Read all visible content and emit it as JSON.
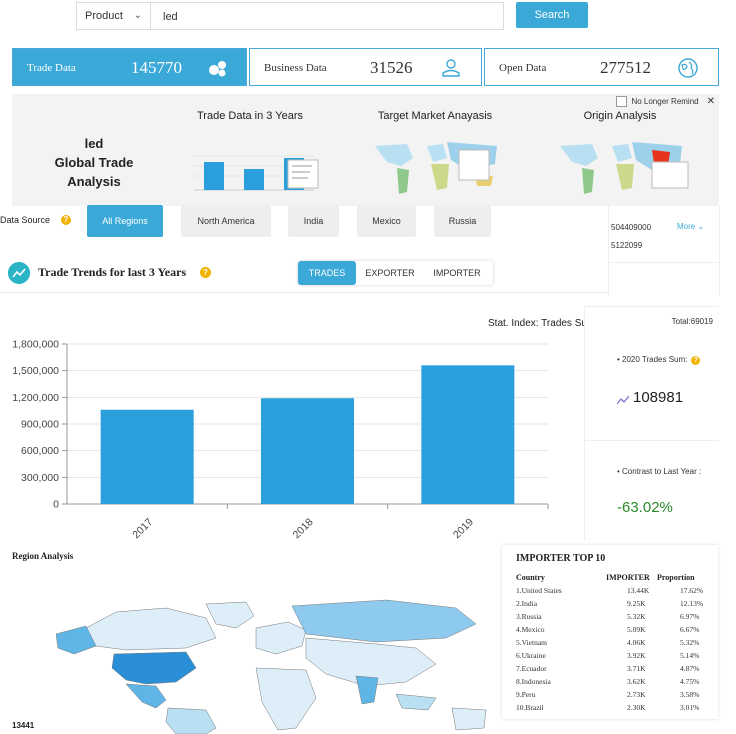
{
  "search": {
    "product_label": "Product",
    "query": "led",
    "button_label": "Search"
  },
  "stats": [
    {
      "label": "Trade Data",
      "value": "145770"
    },
    {
      "label": "Business Data",
      "value": "31526"
    },
    {
      "label": "Open Data",
      "value": "277512"
    }
  ],
  "promo": {
    "title_line1": "led",
    "title_line2": "Global Trade",
    "title_line3": "Analysis",
    "col1": "Trade Data in 3 Years",
    "col2": "Target Market Anayasis",
    "col3": "Origin Analysis",
    "remind": "No Longer Remind"
  },
  "data_source": {
    "label": "Data Source",
    "tabs": [
      "All Regions",
      "North America",
      "India",
      "Mexico",
      "Russia"
    ]
  },
  "side_list": {
    "item1": "504409000",
    "item2": "5122099",
    "more": "More"
  },
  "trends": {
    "title": "Trade Trends for last 3 Years",
    "tabs": [
      "TRADES",
      "EXPORTER",
      "IMPORTER"
    ],
    "stat_index": "Stat. Index: Trades Sum"
  },
  "chart_data": {
    "type": "bar",
    "categories": [
      "2017",
      "2018",
      "2019"
    ],
    "values": [
      1060000,
      1190000,
      1560000
    ],
    "ylim": [
      0,
      1800000
    ],
    "yticks": [
      "0",
      "300,000",
      "600,000",
      "900,000",
      "1,200,000",
      "1,500,000",
      "1,800,000"
    ],
    "color": "#2a9fdc",
    "title": "",
    "xlabel": "",
    "ylabel": ""
  },
  "right_stats": {
    "total": "Total:69019",
    "trades_sum_label": "• 2020 Trades Sum:",
    "trades_sum_value": "108981",
    "contrast_label": "• Contrast to Last Year :",
    "contrast_value": "-63.02%"
  },
  "region": {
    "title": "Region Analysis",
    "count": "13441"
  },
  "importer": {
    "title": "IMPORTER TOP 10",
    "headers": [
      "Country",
      "IMPORTER",
      "Proportion"
    ],
    "rows": [
      [
        "1.United States",
        "13.44K",
        "17.62%"
      ],
      [
        "2.India",
        "9.25K",
        "12.13%"
      ],
      [
        "3.Russia",
        "5.32K",
        "6.97%"
      ],
      [
        "4.Mexico",
        "5.09K",
        "6.67%"
      ],
      [
        "5.Vietnam",
        "4.06K",
        "5.32%"
      ],
      [
        "6.Ukraine",
        "3.92K",
        "5.14%"
      ],
      [
        "7.Ecuador",
        "3.71K",
        "4.87%"
      ],
      [
        "8.Indonesia",
        "3.62K",
        "4.75%"
      ],
      [
        "9.Peru",
        "2.73K",
        "3.58%"
      ],
      [
        "10.Brazil",
        "2.30K",
        "3.01%"
      ]
    ]
  }
}
